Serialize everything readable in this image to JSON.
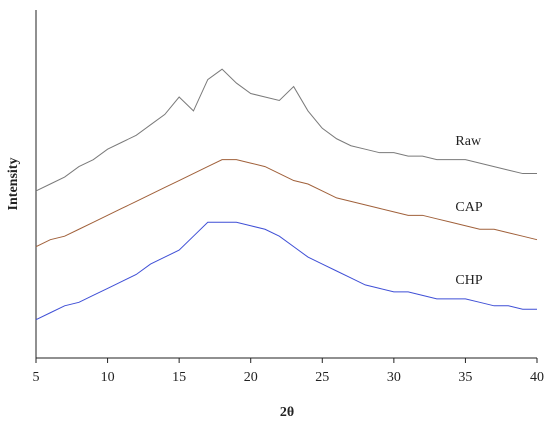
{
  "chart_data": {
    "type": "line",
    "x_label": "2θ",
    "y_label": "Intensity",
    "x": [
      5,
      6,
      7,
      8,
      9,
      10,
      11,
      12,
      13,
      14,
      15,
      16,
      17,
      18,
      19,
      20,
      21,
      22,
      23,
      24,
      25,
      26,
      27,
      28,
      29,
      30,
      31,
      32,
      33,
      34,
      35,
      36,
      37,
      38,
      39,
      40
    ],
    "series": [
      {
        "name": "Raw",
        "color": "#7a7a7a",
        "values": [
          48,
          50,
          52,
          55,
          57,
          60,
          62,
          64,
          67,
          70,
          75,
          71,
          80,
          83,
          79,
          76,
          75,
          74,
          78,
          71,
          66,
          63,
          61,
          60,
          59,
          59,
          58,
          58,
          57,
          57,
          57,
          56,
          55,
          54,
          53,
          53
        ]
      },
      {
        "name": "CAP",
        "color": "#a0603a",
        "values": [
          32,
          34,
          35,
          37,
          39,
          41,
          43,
          45,
          47,
          49,
          51,
          53,
          55,
          57,
          57,
          56,
          55,
          53,
          51,
          50,
          48,
          46,
          45,
          44,
          43,
          42,
          41,
          41,
          40,
          39,
          38,
          37,
          37,
          36,
          35,
          34
        ]
      },
      {
        "name": "CHP",
        "color": "#3f4fd6",
        "values": [
          11,
          13,
          15,
          16,
          18,
          20,
          22,
          24,
          27,
          29,
          31,
          35,
          39,
          39,
          39,
          38,
          37,
          35,
          32,
          29,
          27,
          25,
          23,
          21,
          20,
          19,
          19,
          18,
          17,
          17,
          17,
          16,
          15,
          15,
          14,
          14
        ]
      }
    ],
    "xlim": [
      5,
      40
    ],
    "xticks": [
      5,
      10,
      15,
      20,
      25,
      30,
      35,
      40
    ],
    "ylim": [
      0,
      100
    ]
  }
}
